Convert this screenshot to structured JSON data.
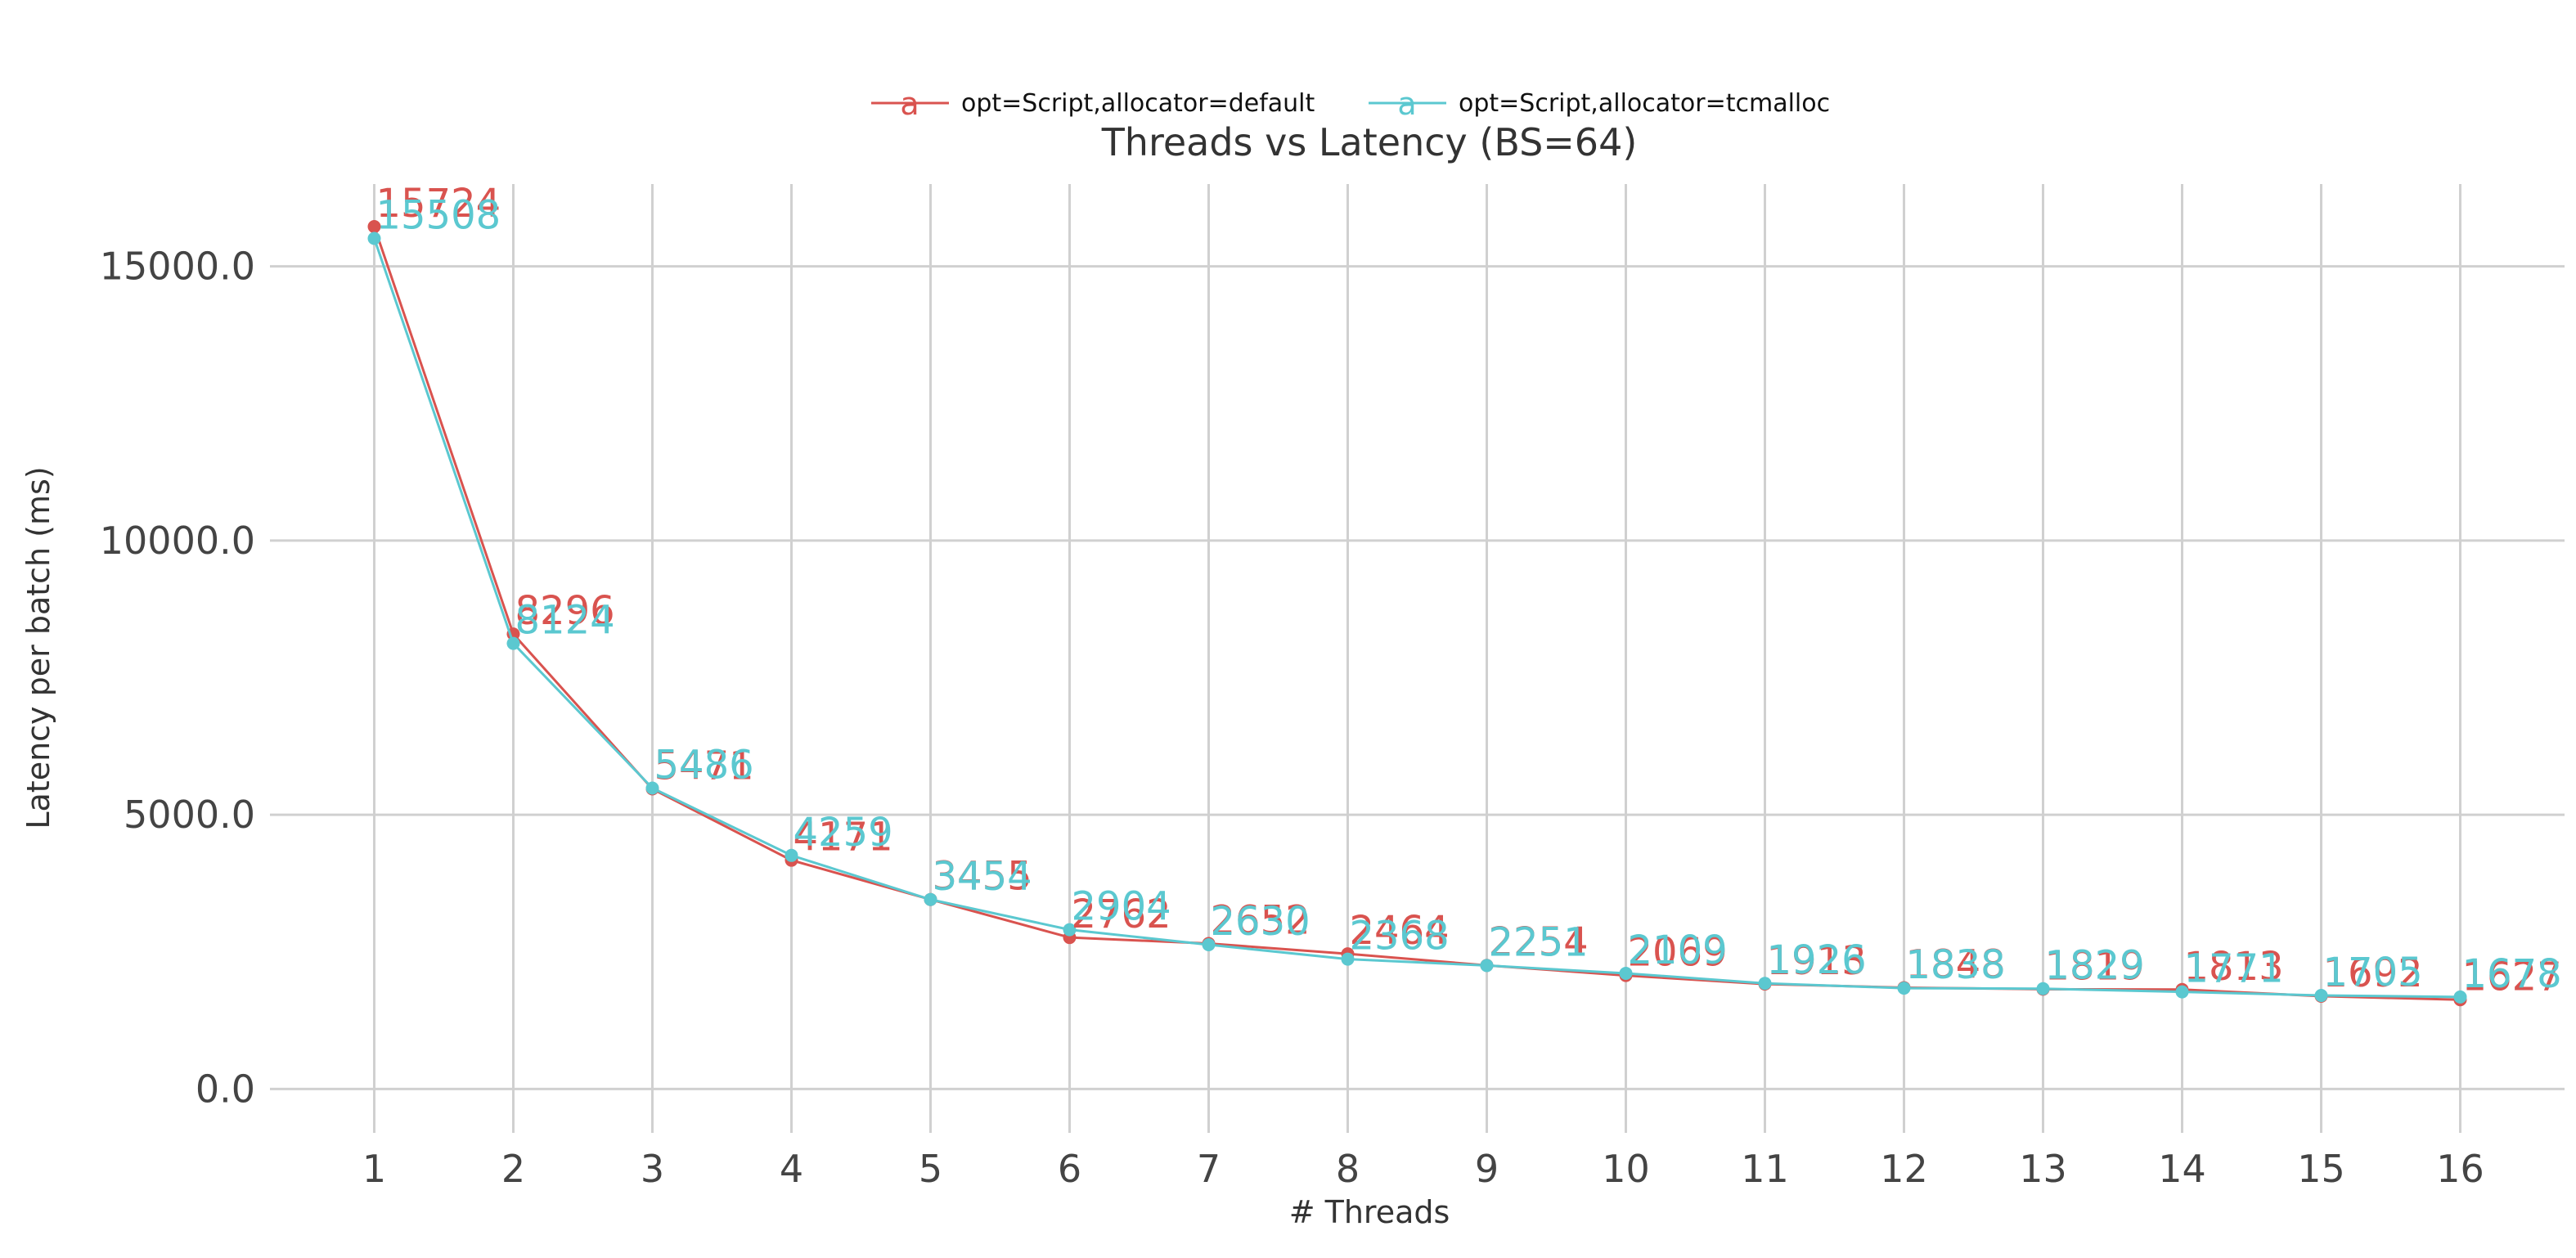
{
  "chart_data": {
    "type": "line",
    "title": "Threads vs Latency (BS=64)",
    "xlabel": "# Threads",
    "ylabel": "Latency per batch (ms)",
    "x": [
      1,
      2,
      3,
      4,
      5,
      6,
      7,
      8,
      9,
      10,
      11,
      12,
      13,
      14,
      15,
      16
    ],
    "xlim": [
      0.25,
      16.75
    ],
    "ylim": [
      -800,
      16500
    ],
    "yticks": [
      0,
      5000,
      10000,
      15000
    ],
    "ytick_labels": [
      "0.0",
      "5000.0",
      "10000.0",
      "15000.0"
    ],
    "grid": true,
    "legend_position": "top-center",
    "series": [
      {
        "name": "opt=Script,allocator=default",
        "color": "#d9534f",
        "values": [
          15724,
          8296,
          5471,
          4171,
          3455,
          2762,
          2652,
          2464,
          2254,
          2069,
          1913,
          1848,
          1819,
          1813,
          1692,
          1627
        ]
      },
      {
        "name": "opt=Script,allocator=tcmalloc",
        "color": "#5bc8d0",
        "values": [
          15508,
          8124,
          5486,
          4259,
          3454,
          2904,
          2630,
          2368,
          2251,
          2109,
          1926,
          1838,
          1829,
          1771,
          1705,
          1678
        ]
      }
    ]
  }
}
